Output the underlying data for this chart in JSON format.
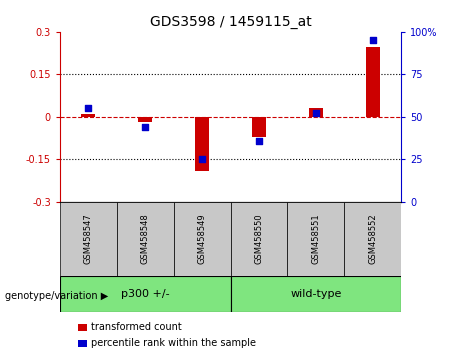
{
  "title": "GDS3598 / 1459115_at",
  "samples": [
    "GSM458547",
    "GSM458548",
    "GSM458549",
    "GSM458550",
    "GSM458551",
    "GSM458552"
  ],
  "transformed_count": [
    0.01,
    -0.02,
    -0.19,
    -0.07,
    0.03,
    0.245
  ],
  "percentile_rank": [
    55,
    44,
    25,
    36,
    52,
    95
  ],
  "group1_label": "p300 +/-",
  "group1_samples": [
    0,
    1,
    2
  ],
  "group2_label": "wild-type",
  "group2_samples": [
    3,
    4,
    5
  ],
  "group_bg_color": "#7FE57F",
  "sample_bg_color": "#c8c8c8",
  "bar_color_red": "#cc0000",
  "bar_color_blue": "#0000cc",
  "zero_line_color": "#cc0000",
  "dotted_line_color": "#000000",
  "ylim_left": [
    -0.3,
    0.3
  ],
  "ylim_right": [
    0,
    100
  ],
  "yticks_left": [
    -0.3,
    -0.15,
    0,
    0.15,
    0.3
  ],
  "yticks_right": [
    0,
    25,
    50,
    75,
    100
  ],
  "legend_labels": [
    "transformed count",
    "percentile rank within the sample"
  ],
  "genotype_label": "genotype/variation"
}
